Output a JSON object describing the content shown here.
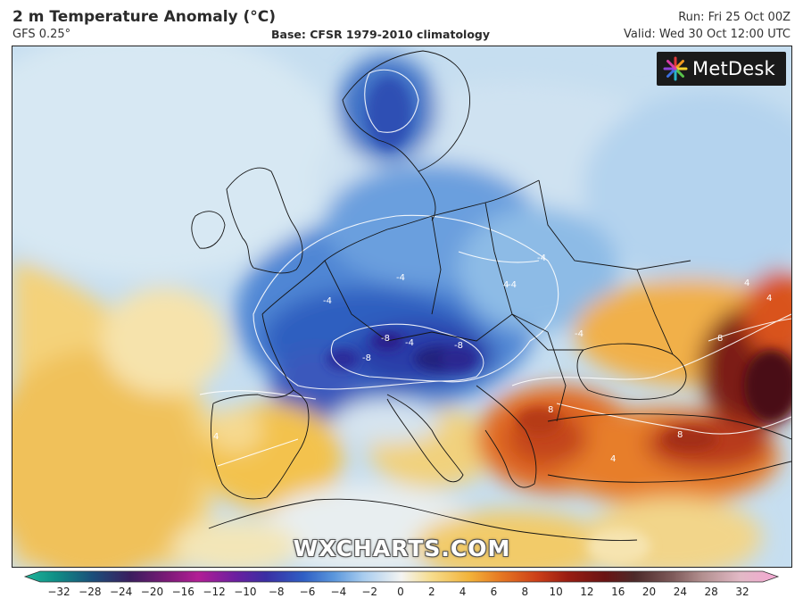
{
  "header": {
    "title": "2 m Temperature Anomaly (°C)",
    "model": "GFS 0.25°",
    "base": "Base: CFSR 1979-2010 climatology",
    "run": "Run: Fri 25 Oct 00Z",
    "valid": "Valid: Wed 30 Oct 12:00 UTC"
  },
  "logo": {
    "text": "MetDesk"
  },
  "watermark": "WXCHARTS.COM",
  "map": {
    "contour_labels": [
      "4",
      "4",
      "4",
      "4",
      "4",
      "-4",
      "-4",
      "-4",
      "-4",
      "-4",
      "-4",
      "-8",
      "-8",
      "-8",
      "8",
      "8",
      "8"
    ]
  },
  "colorbar": {
    "ticks": [
      "−32",
      "−28",
      "−24",
      "−20",
      "−16",
      "−12",
      "−10",
      "−8",
      "−6",
      "−4",
      "−2",
      "0",
      "2",
      "4",
      "6",
      "8",
      "10",
      "12",
      "16",
      "20",
      "24",
      "28",
      "32"
    ]
  },
  "colors": {
    "cold_strong": "#2a1f8f",
    "cold": "#2f66c6",
    "cool": "#8fc0ea",
    "neutral": "#eef3f5",
    "warm": "#f2c14e",
    "hot": "#d9531c",
    "very_hot": "#5a0f14"
  }
}
